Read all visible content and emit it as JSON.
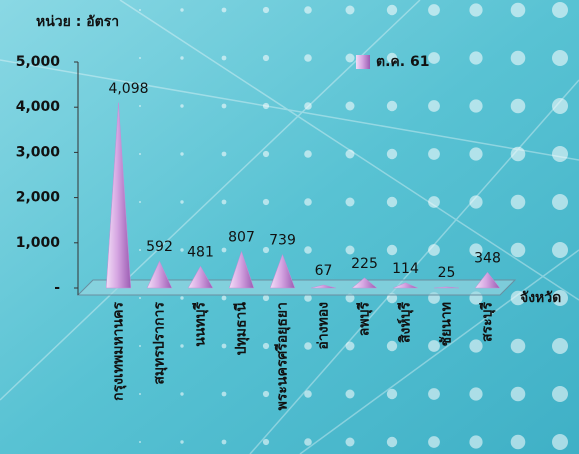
{
  "chart_data": {
    "type": "bar",
    "unit_label": "หน่วย : อัตรา",
    "x_label": "จังหวัด",
    "categories": [
      "กรุงเทพมหานคร",
      "สมุทรปราการ",
      "นนทบุรี",
      "ปทุมธานี",
      "พระนครศรีอยุธยา",
      "อ่างทอง",
      "ลพบุรี",
      "สิงห์บุรี",
      "ชัยนาท",
      "สระบุรี"
    ],
    "series": [
      {
        "name": "ต.ค. 61",
        "color": "#c58fd6",
        "values": [
          4098,
          592,
          481,
          807,
          739,
          67,
          225,
          114,
          25,
          348
        ],
        "value_labels": [
          "4,098",
          "592",
          "481",
          "807",
          "739",
          "67",
          "225",
          "114",
          "25",
          "348"
        ]
      }
    ],
    "ylim": [
      0,
      5000
    ],
    "yticks": [
      {
        "value": 0,
        "label": "-"
      },
      {
        "value": 1000,
        "label": "1,000"
      },
      {
        "value": 2000,
        "label": "2,000"
      },
      {
        "value": 3000,
        "label": "3,000"
      },
      {
        "value": 4000,
        "label": "4,000"
      },
      {
        "value": 5000,
        "label": "5,000"
      }
    ],
    "legend": "top-right"
  }
}
